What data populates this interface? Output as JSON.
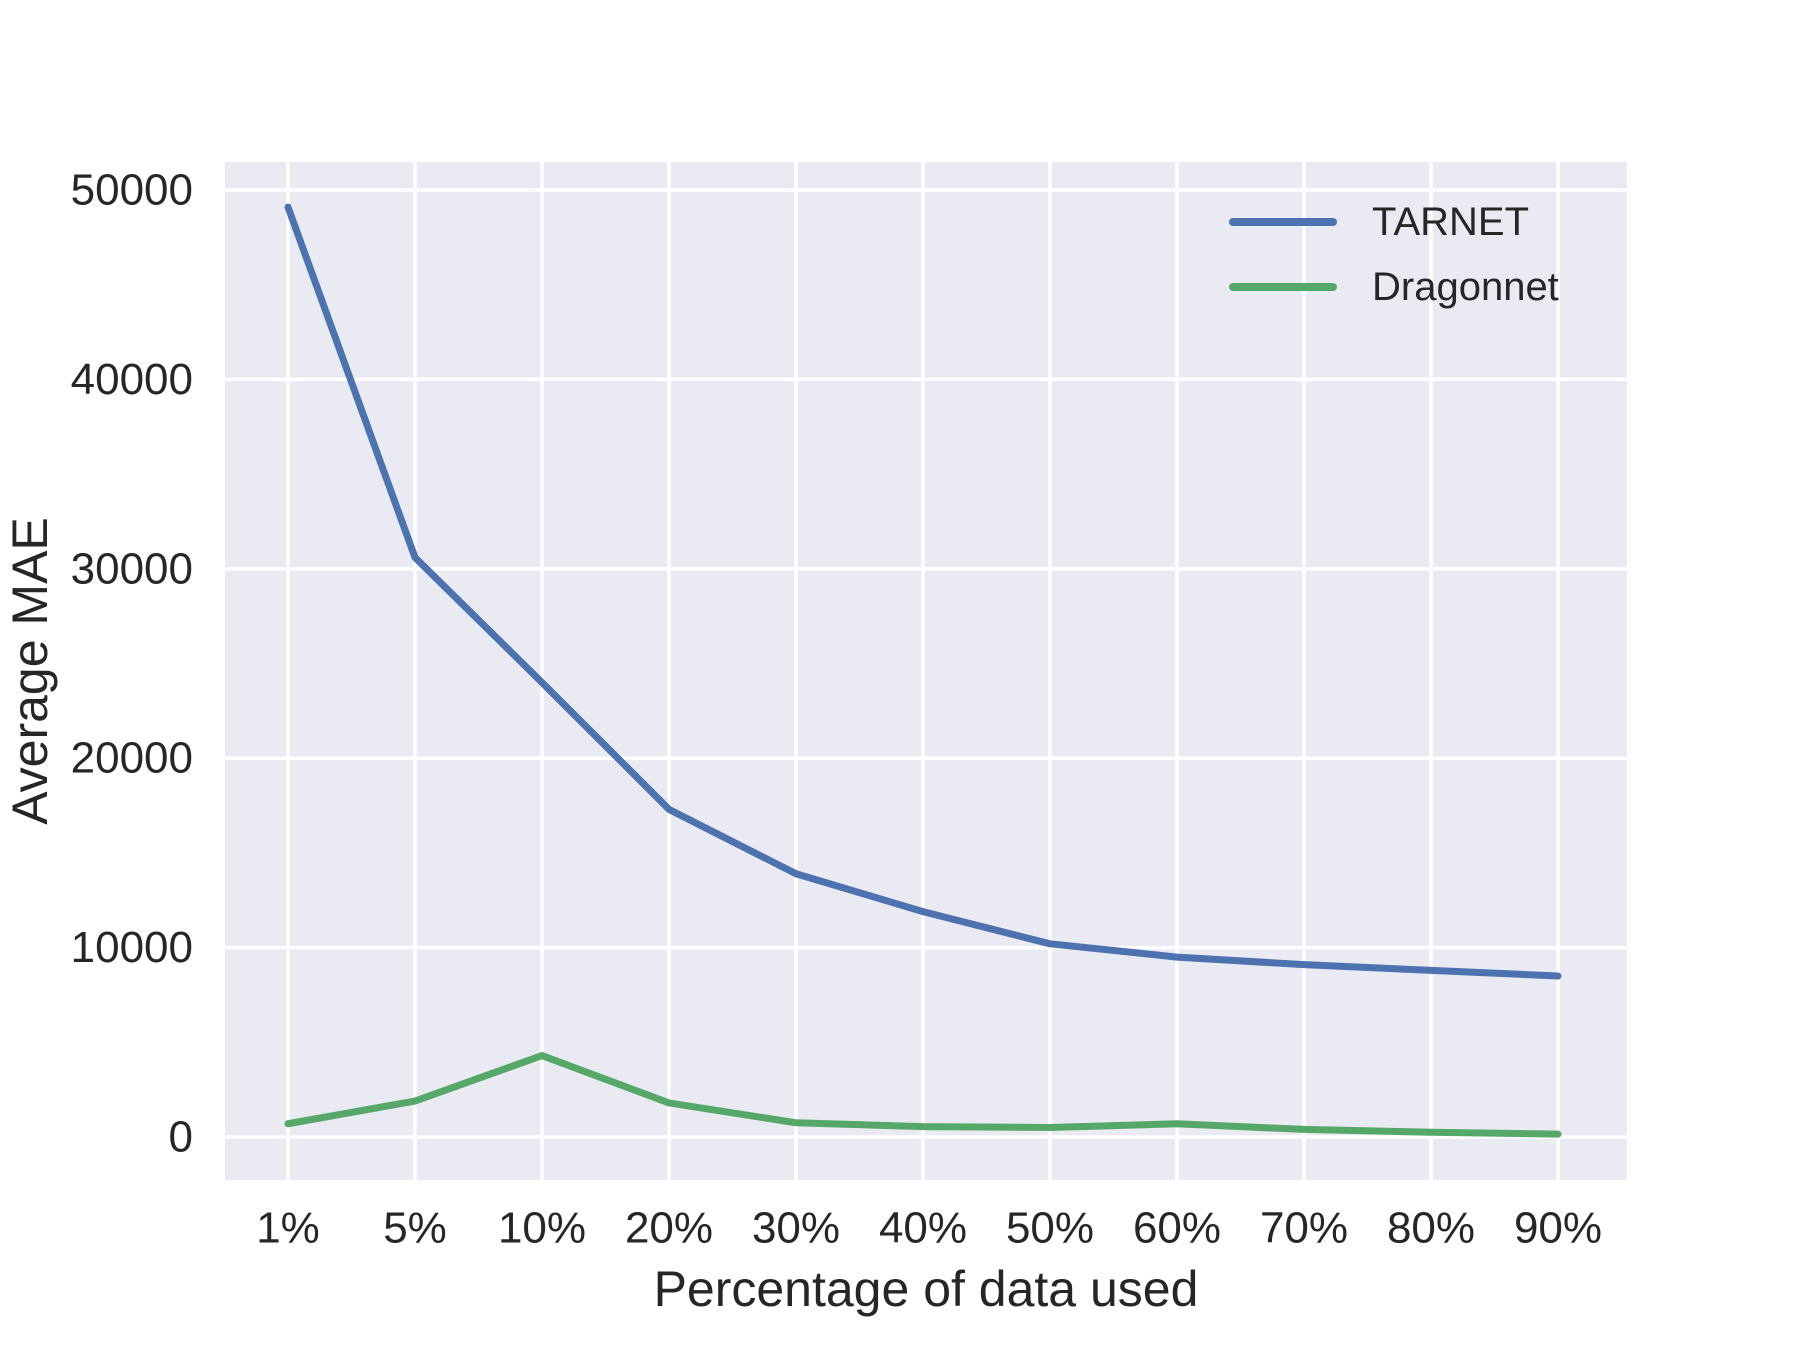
{
  "chart_data": {
    "type": "line",
    "xlabel": "Percentage of data used",
    "ylabel": "Average MAE",
    "categories": [
      "1%",
      "5%",
      "10%",
      "20%",
      "30%",
      "40%",
      "50%",
      "60%",
      "70%",
      "80%",
      "90%"
    ],
    "series": [
      {
        "name": "TARNET",
        "color": "#4c72b0",
        "values": [
          49100,
          30600,
          24000,
          17300,
          13900,
          11900,
          10200,
          9500,
          9100,
          8800,
          8500
        ]
      },
      {
        "name": "Dragonnet",
        "color": "#55a868",
        "values": [
          700,
          1900,
          4300,
          1800,
          750,
          550,
          500,
          700,
          400,
          250,
          150
        ]
      }
    ],
    "y_ticks": [
      {
        "label": "0",
        "value": 0
      },
      {
        "label": "10000",
        "value": 10000
      },
      {
        "label": "20000",
        "value": 20000
      },
      {
        "label": "30000",
        "value": 30000
      },
      {
        "label": "40000",
        "value": 40000
      },
      {
        "label": "50000",
        "value": 50000
      }
    ],
    "ylim": [
      -2270,
      51480
    ],
    "grid": true,
    "legend_position": "upper right",
    "plot_bg_color": "#eaeaf2",
    "grid_color": "#ffffff",
    "text_color": "#262626"
  }
}
